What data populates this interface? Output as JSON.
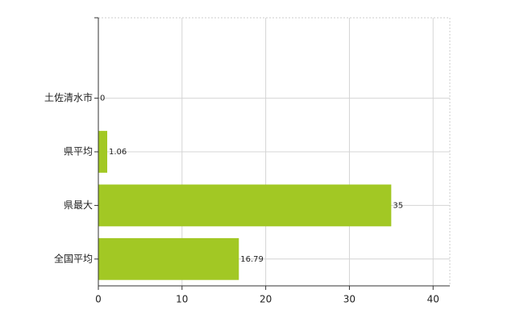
{
  "chart_data": {
    "type": "barh",
    "categories": [
      null,
      "土佐清水市",
      "県平均",
      "県最大",
      "全国平均"
    ],
    "values": [
      null,
      0,
      1.06,
      35,
      16.79
    ],
    "color": "#a2c824",
    "xlim": [
      0,
      42
    ],
    "xticks": [
      0,
      10,
      20,
      30,
      40
    ],
    "grid": true
  }
}
